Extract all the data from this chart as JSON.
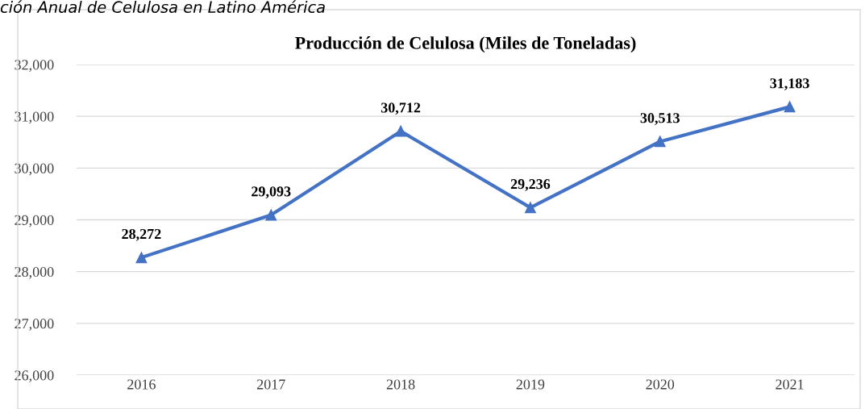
{
  "chart_data": {
    "type": "line",
    "title": "Producción de Celulosa (Miles de Toneladas)",
    "annotations": [
      "ción Anual de Celulosa en Latino América"
    ],
    "categories": [
      "2016",
      "2017",
      "2018",
      "2019",
      "2020",
      "2021"
    ],
    "series": [
      {
        "color": "#4472c4",
        "values": [
          28272,
          29093,
          30712,
          29236,
          30513,
          31183
        ]
      }
    ],
    "ylim": [
      26000,
      32000
    ],
    "yticks": [
      {
        "value": 26000,
        "label": "26,000"
      },
      {
        "value": 27000,
        "label": "27,000"
      },
      {
        "value": 28000,
        "label": "28,000"
      },
      {
        "value": 29000,
        "label": "29,000"
      },
      {
        "value": 30000,
        "label": "30,000"
      },
      {
        "value": 31000,
        "label": "31,000"
      },
      {
        "value": 32000,
        "label": "32,000"
      }
    ],
    "grid": "y",
    "marker": "triangle",
    "line_style": "solid",
    "legend": false,
    "value_labels": [
      "28,272",
      "29,093",
      "30,712",
      "29,236",
      "30,513",
      "31,183"
    ]
  }
}
